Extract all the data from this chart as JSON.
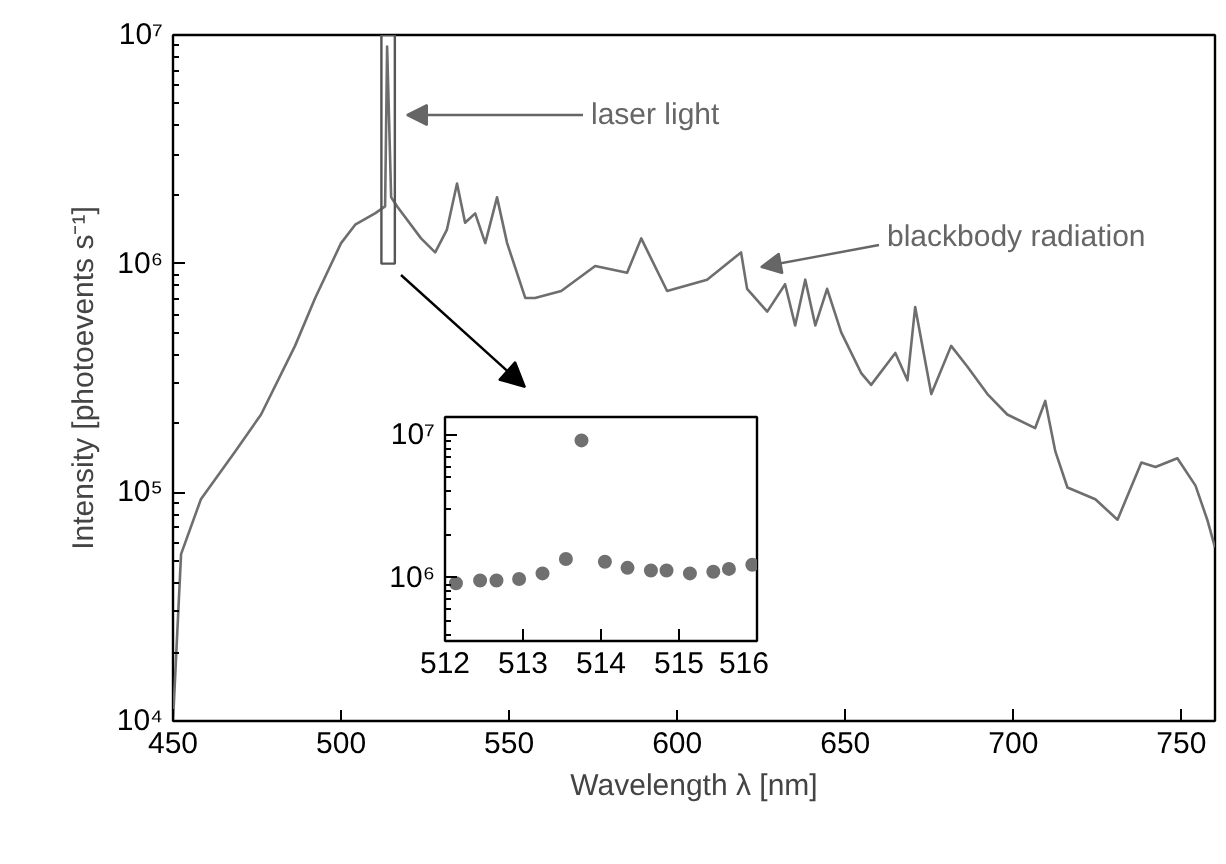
{
  "chart_data": [
    {
      "type": "line",
      "xlabel": "Wavelength λ [nm]",
      "ylabel": "Intensity [photoevents s⁻¹]",
      "log": "y",
      "xlim": [
        450,
        760
      ],
      "ylim": [
        10000,
        10000000
      ],
      "xticks": [
        450,
        500,
        550,
        600,
        650,
        700,
        750
      ],
      "yticks": [
        {
          "value": 10000,
          "label": "10⁴"
        },
        {
          "value": 100000,
          "label": "10⁵"
        },
        {
          "value": 1000000,
          "label": "10⁶"
        },
        {
          "value": 10000000,
          "label": "10⁷"
        }
      ],
      "x": [
        450,
        452.4,
        458.3,
        468.5,
        476.2,
        486.3,
        492.3,
        500,
        504.2,
        510.1,
        513.1,
        513.7,
        514.9,
        516.7,
        523.8,
        528,
        531.5,
        534.5,
        536.9,
        539.9,
        542.9,
        546.4,
        549.4,
        554.8,
        557.7,
        565.5,
        575.6,
        585.1,
        589.3,
        597,
        608.9,
        619,
        620.8,
        626.8,
        632.1,
        635.1,
        638.1,
        641.1,
        644.6,
        648.8,
        654.8,
        657.7,
        664.9,
        668.5,
        670.8,
        675.6,
        681.5,
        686.3,
        692.3,
        698.2,
        706.5,
        709.5,
        712.5,
        716.1,
        724.4,
        731,
        738.1,
        742.3,
        748.8,
        754.2,
        757.7,
        760
      ],
      "series": [
        {
          "color": "#6e6e6e",
          "values": [
            10000,
            53700,
            93300,
            151000,
            219000,
            437000,
            708000,
            1230000,
            1480000,
            1660000,
            1780000,
            8910000,
            1950000,
            1780000,
            1290000,
            1120000,
            1410000,
            2240000,
            1510000,
            1660000,
            1230000,
            1950000,
            1230000,
            708000,
            708000,
            759000,
            977000,
            912000,
            1290000,
            759000,
            851000,
            1120000,
            776000,
            617000,
            813000,
            537000,
            851000,
            537000,
            776000,
            501000,
            331000,
            295000,
            407000,
            309000,
            646000,
            269000,
            437000,
            355000,
            269000,
            219000,
            191000,
            251000,
            151000,
            105000,
            93300,
            75900,
            135000,
            129000,
            141000,
            107000,
            75900,
            57500
          ]
        }
      ],
      "annotations": [
        "laser light",
        "blackbody radiation"
      ]
    },
    {
      "type": "scatter",
      "marker": "circle",
      "log": "y",
      "xlim": [
        512,
        516
      ],
      "ylim": [
        360000,
        13300000
      ],
      "xticks": [
        512,
        513,
        514,
        515,
        516
      ],
      "yticks": [
        {
          "value": 1000000,
          "label": "10⁶"
        },
        {
          "value": 10000000,
          "label": "10⁷"
        }
      ],
      "x": [
        512.14,
        512.45,
        512.66,
        512.95,
        513.25,
        513.55,
        513.75,
        514.05,
        514.34,
        514.64,
        514.84,
        515.14,
        515.44,
        515.64,
        515.94
      ],
      "series": [
        {
          "color": "#707070",
          "values": [
            912000,
            955000,
            955000,
            977000,
            1070000,
            1350000,
            9120000,
            1290000,
            1170000,
            1120000,
            1120000,
            1070000,
            1100000,
            1150000,
            1230000
          ]
        }
      ]
    }
  ]
}
